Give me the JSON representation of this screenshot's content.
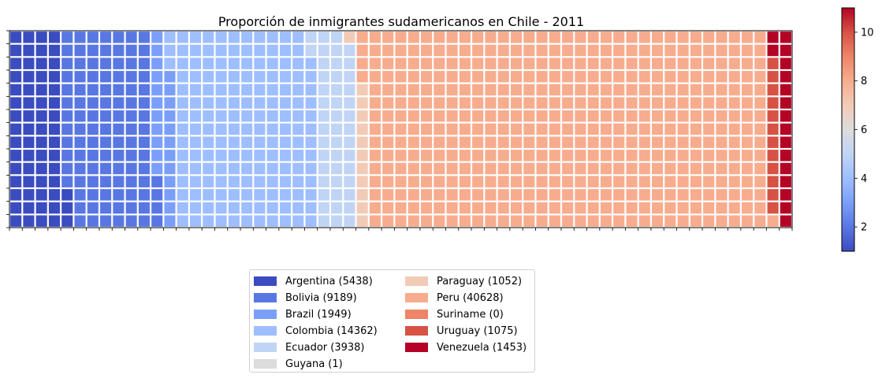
{
  "chart_data": {
    "type": "waffle",
    "title": "Proporción de inmigrantes sudamericanos en Chile - 2011",
    "grid": {
      "rows": 15,
      "columns": 61
    },
    "categories": [
      {
        "name": "Argentina",
        "value": 5438,
        "color": "#3b4cc0"
      },
      {
        "name": "Bolivia",
        "value": 9189,
        "color": "#5977e3"
      },
      {
        "name": "Brazil",
        "value": 1949,
        "color": "#7b9ff9"
      },
      {
        "name": "Colombia",
        "value": 14362,
        "color": "#9ebeff"
      },
      {
        "name": "Ecuador",
        "value": 3938,
        "color": "#c0d4f5"
      },
      {
        "name": "Guyana",
        "value": 1,
        "color": "#dddcdc"
      },
      {
        "name": "Paraguay",
        "value": 1052,
        "color": "#f2cbb7"
      },
      {
        "name": "Peru",
        "value": 40628,
        "color": "#f7ac8e"
      },
      {
        "name": "Suriname",
        "value": 0,
        "color": "#ee8468"
      },
      {
        "name": "Uruguay",
        "value": 1075,
        "color": "#d65244"
      },
      {
        "name": "Venezuela",
        "value": 1453,
        "color": "#b40426"
      }
    ],
    "legend_labels": [
      "Argentina (5438)",
      "Bolivia (9189)",
      "Brazil (1949)",
      "Colombia (14362)",
      "Ecuador (3938)",
      "Guyana (1)",
      "Paraguay (1052)",
      "Peru (40628)",
      "Suriname (0)",
      "Uruguay (1075)",
      "Venezuela (1453)"
    ],
    "legend_position": "bottom-center",
    "colorbar": {
      "colormap": "coolwarm",
      "range": [
        1,
        11
      ],
      "ticks": [
        "2",
        "4",
        "6",
        "8",
        "10"
      ],
      "colors": [
        "#3b4cc0",
        "#5977e3",
        "#7b9ff9",
        "#9ebeff",
        "#c0d4f5",
        "#dddcdc",
        "#f2cbb7",
        "#f7ac8e",
        "#ee8468",
        "#d65244",
        "#b40426"
      ]
    }
  }
}
